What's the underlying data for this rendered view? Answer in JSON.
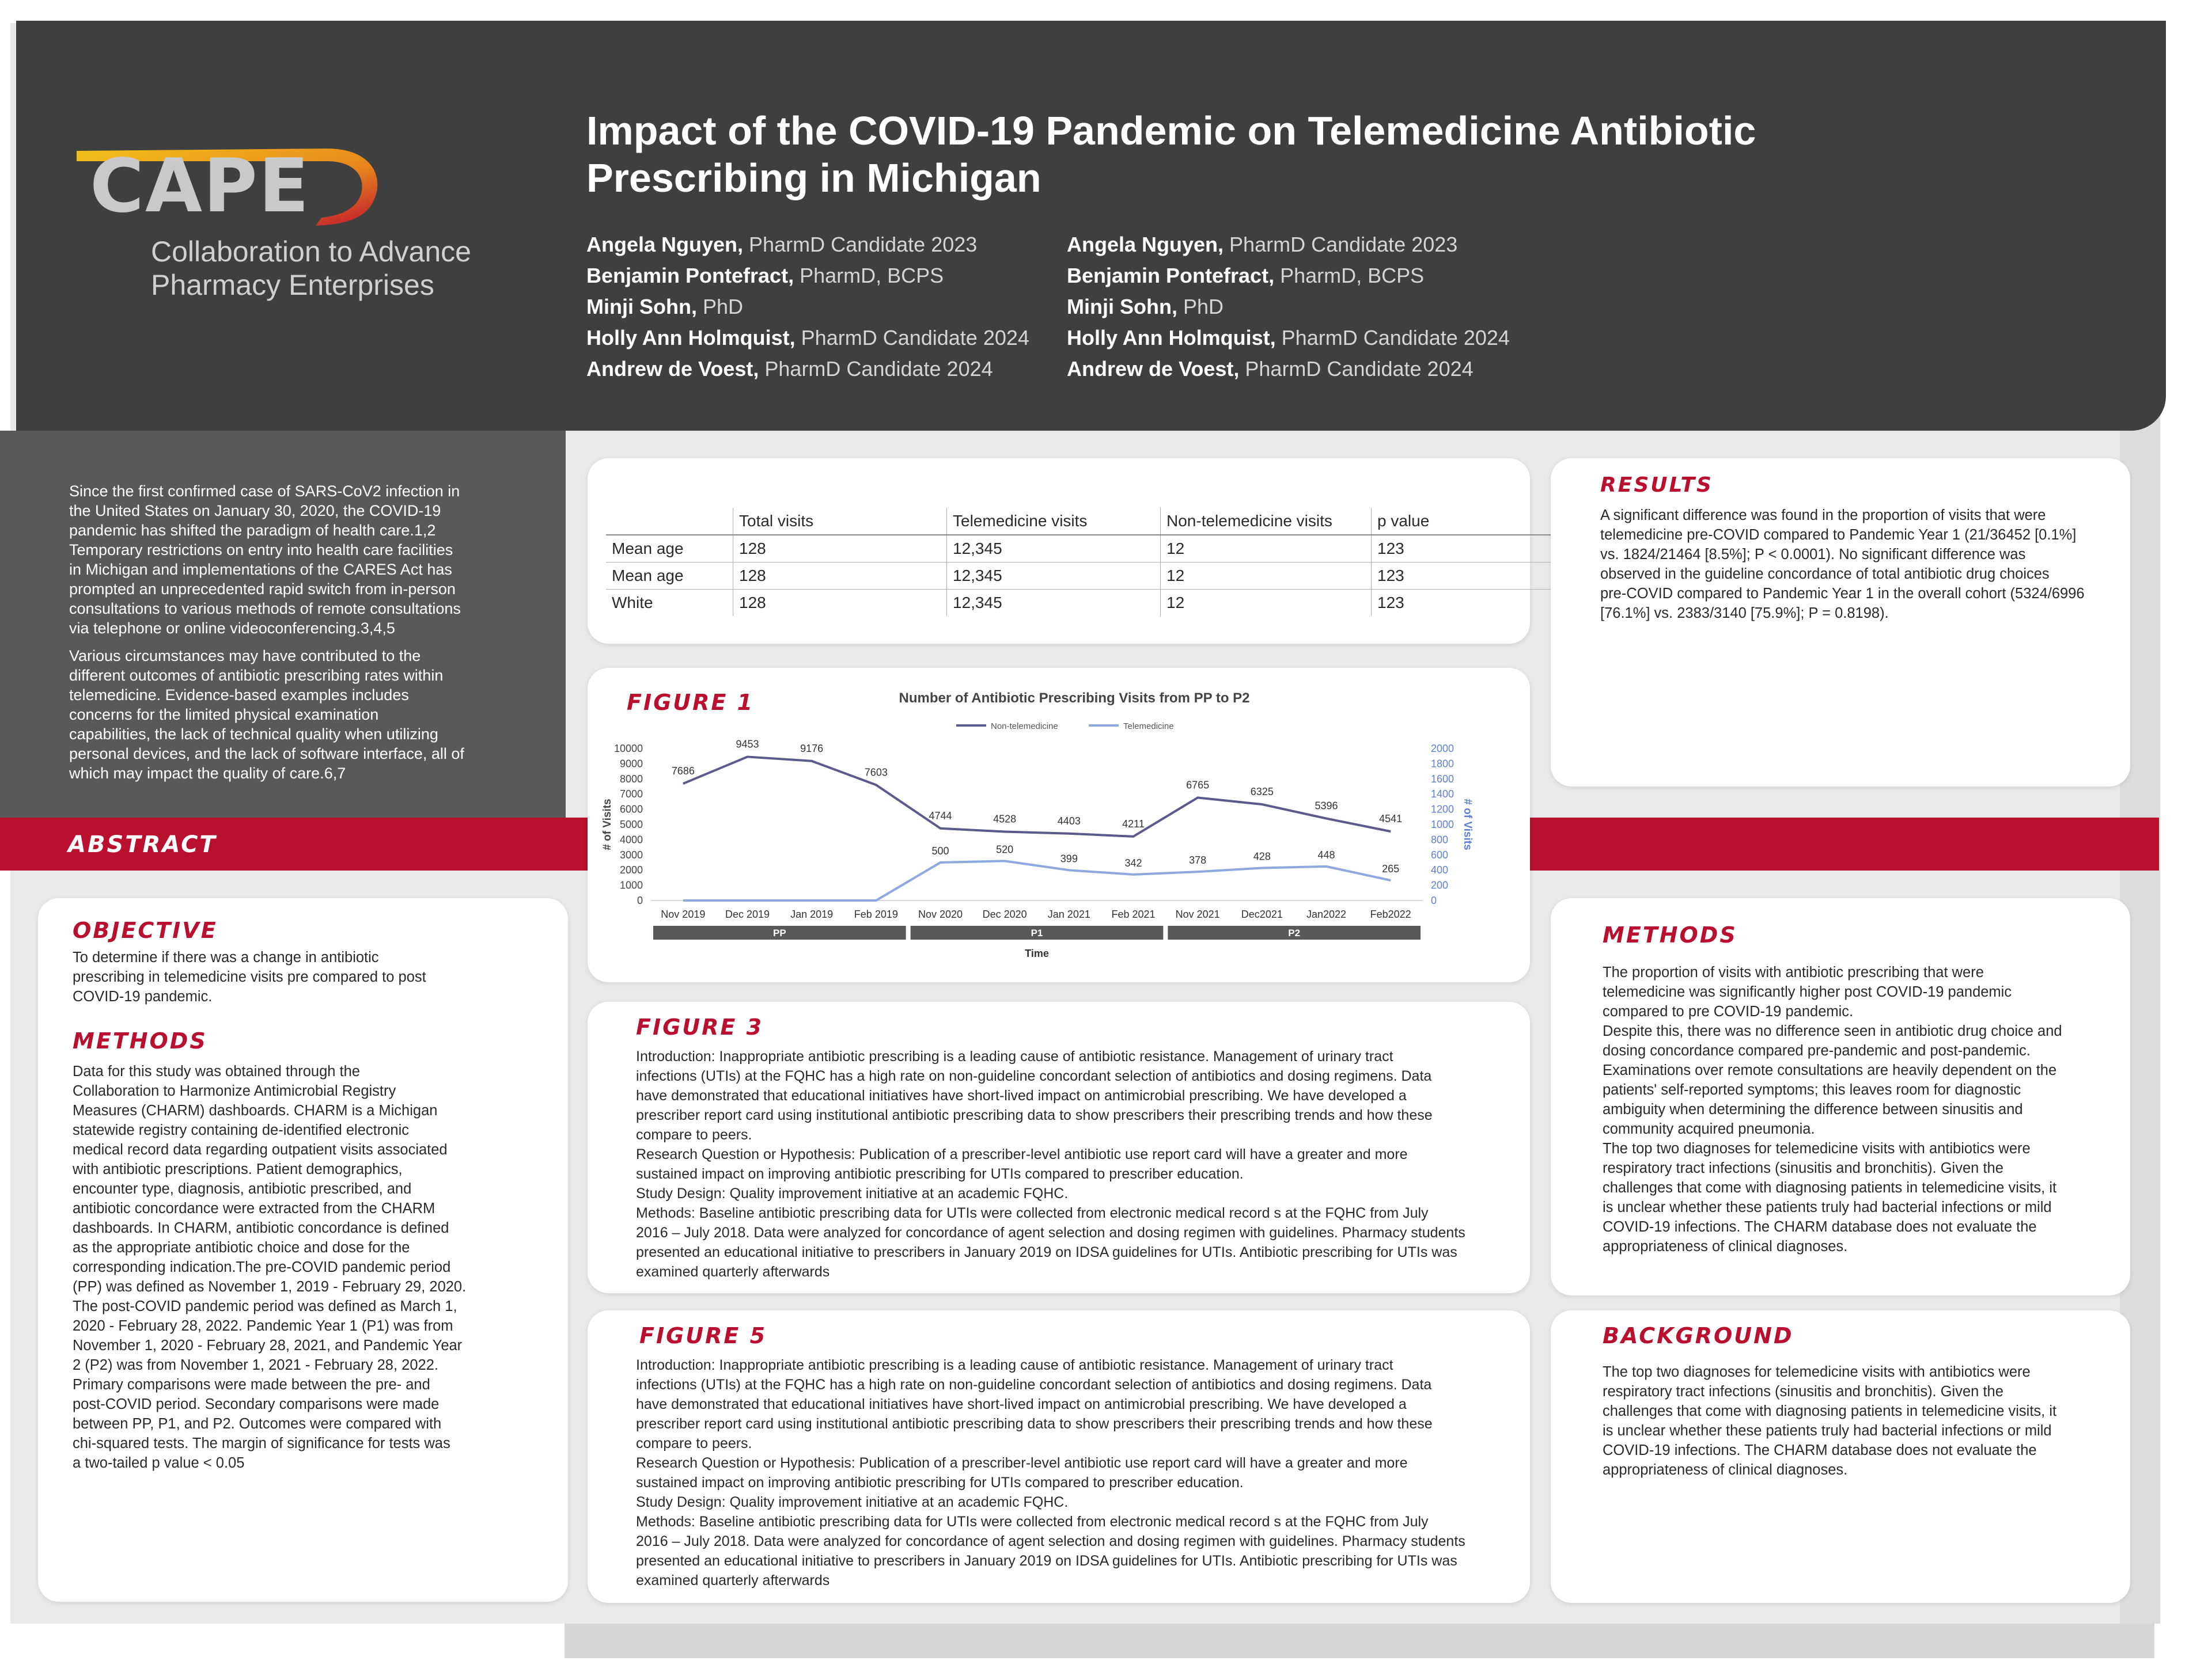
{
  "header": {
    "title_line1": "Impact of the COVID-19 Pandemic on Telemedicine Antibiotic",
    "title_line2": "Prescribing in Michigan",
    "logo": {
      "wordmark": "CAPE",
      "tagline_line1": "Collaboration to Advance",
      "tagline_line2": "Pharmacy Enterprises"
    },
    "authors_left": [
      {
        "name": "Angela Nguyen,",
        "cred": " PharmD Candidate 2023"
      },
      {
        "name": "Benjamin Pontefract,",
        "cred": " PharmD, BCPS"
      },
      {
        "name": "Minji Sohn,",
        "cred": " PhD"
      },
      {
        "name": "Holly Ann Holmquist,",
        "cred": " PharmD Candidate 2024"
      },
      {
        "name": "Andrew de Voest,",
        "cred": " PharmD Candidate 2024"
      }
    ],
    "authors_right": [
      {
        "name": "Angela Nguyen,",
        "cred": " PharmD Candidate 2023"
      },
      {
        "name": "Benjamin Pontefract,",
        "cred": " PharmD, BCPS"
      },
      {
        "name": "Minji Sohn,",
        "cred": " PhD"
      },
      {
        "name": "Holly Ann Holmquist,",
        "cred": " PharmD Candidate 2024"
      },
      {
        "name": "Andrew de Voest,",
        "cred": " PharmD Candidate 2024"
      }
    ]
  },
  "intro": {
    "p1": "Since the first confirmed case of SARS-CoV2 infection in\nthe United States on January 30, 2020, the COVID-19\npandemic has shifted the paradigm of health care.1,2\nTemporary restrictions on entry into health care facilities\nin Michigan and implementations of the CARES Act has\nprompted an unprecedented rapid switch from in-person\nconsultations to various methods of remote consultations\nvia telephone or online videoconferencing.3,4,5",
    "p2": "Various circumstances may have contributed to the\ndifferent outcomes of antibiotic prescribing rates within\ntelemedicine. Evidence-based examples includes\nconcerns for the limited physical examination\ncapabilities, the lack of technical quality when utilizing\npersonal devices, and the lack of software interface, all of\nwhich may impact the quality of care.6,7"
  },
  "abstract_label": "ABSTRACT",
  "left_card": {
    "objective_title": "OBJECTIVE",
    "objective_text": "To determine if there was a change in antibiotic\nprescribing in telemedicine visits pre compared to post\nCOVID-19 pandemic.",
    "methods_title": "METHODS",
    "methods_text": "Data for this study was obtained through the\nCollaboration to Harmonize Antimicrobial Registry\nMeasures (CHARM) dashboards. CHARM is a Michigan\nstatewide registry containing de-identified electronic\nmedical record data regarding outpatient visits associated\nwith antibiotic prescriptions. Patient demographics,\nencounter type, diagnosis, antibiotic prescribed, and\nantibiotic concordance were extracted from the CHARM\ndashboards. In CHARM, antibiotic concordance is defined\nas the appropriate antibiotic choice and dose for the\ncorresponding indication.The pre-COVID pandemic period\n(PP) was defined as November 1, 2019 - February 29, 2020.\nThe post-COVID pandemic period was defined as March 1,\n2020 - February 28, 2022. Pandemic Year 1 (P1) was from\nNovember 1, 2020 - February 28, 2021, and Pandemic Year\n2 (P2) was from November 1, 2021 - February 28, 2022.\nPrimary comparisons were made between the pre- and\npost-COVID period. Secondary comparisons were made\nbetween PP, P1, and P2. Outcomes were compared with\nchi-squared tests. The margin of significance for tests was\na two-tailed p value < 0.05"
  },
  "table": {
    "headers": [
      "",
      "Total visits",
      "Telemedicine visits",
      "Non-telemedicine visits",
      "p value"
    ],
    "rows": [
      [
        "Mean age",
        "128",
        "12,345",
        "12",
        "123"
      ],
      [
        "Mean age",
        "128",
        "12,345",
        "12",
        "123"
      ],
      [
        "White",
        "128",
        "12,345",
        "12",
        "123"
      ]
    ]
  },
  "figure1": {
    "label": "FIGURE 1",
    "chart_data": {
      "type": "line",
      "title": "Number of Antibiotic Prescribing Visits from PP to P2",
      "categories": [
        "Nov 2019",
        "Dec 2019",
        "Jan 2019",
        "Feb 2019",
        "Nov 2020",
        "Dec 2020",
        "Jan 2021",
        "Feb 2021",
        "Nov 2021",
        "Dec2021",
        "Jan2022",
        "Feb2022"
      ],
      "series": [
        {
          "name": "Non-telemedicine",
          "axis": "left",
          "color": "#5a5a8c",
          "values": [
            7686,
            9453,
            9176,
            7603,
            4744,
            4528,
            4403,
            4211,
            6765,
            6325,
            5396,
            4541
          ]
        },
        {
          "name": "Telemedicine",
          "axis": "right",
          "color": "#8fa8e0",
          "values": [
            0,
            0,
            0,
            0,
            500,
            520,
            399,
            342,
            378,
            428,
            448,
            265
          ]
        }
      ],
      "telemedicine_labels": [
        "",
        "",
        "",
        "",
        "500",
        "520",
        "399",
        "342",
        "378",
        "428",
        "448",
        "265"
      ],
      "ylabel_left": "# of Visits",
      "ylabel_right": "# of Visits",
      "xlabel": "Time",
      "ylim_left": [
        0,
        10000
      ],
      "ylim_right": [
        0,
        2000
      ],
      "yticks_left": [
        "0",
        "1000",
        "2000",
        "3000",
        "4000",
        "5000",
        "6000",
        "7000",
        "8000",
        "9000",
        "10000"
      ],
      "yticks_right": [
        "0",
        "200",
        "400",
        "600",
        "800",
        "1000",
        "1200",
        "1400",
        "1600",
        "1800",
        "2000"
      ],
      "groups": [
        {
          "label": "PP",
          "span": [
            0,
            3
          ]
        },
        {
          "label": "P1",
          "span": [
            4,
            7
          ]
        },
        {
          "label": "P2",
          "span": [
            8,
            11
          ]
        }
      ],
      "legend_position": "top",
      "grid": false
    }
  },
  "figure3": {
    "label": "FIGURE 3",
    "text": "Introduction: Inappropriate antibiotic prescribing is a leading cause of antibiotic resistance. Management of urinary tract\ninfections (UTIs) at the FQHC has a high rate on non-guideline concordant selection of antibiotics and dosing regimens. Data\nhave demonstrated that educational initiatives have short-lived impact on antimicrobial prescribing. We have developed a\nprescriber report card using institutional antibiotic prescribing data to show prescribers their prescribing trends and how these\ncompare to peers.\nResearch Question or Hypothesis: Publication of a prescriber-level antibiotic use report card will have a greater and more\nsustained impact on improving antibiotic prescribing for UTIs compared to prescriber education.\nStudy Design: Quality improvement initiative at an academic FQHC.\nMethods: Baseline antibiotic prescribing data for UTIs were collected from electronic medical record s at the FQHC from July\n2016 – July 2018. Data were analyzed for concordance of agent selection and dosing regimen with guidelines. Pharmacy students\npresented an educational initiative to prescribers in January 2019 on IDSA guidelines for UTIs. Antibiotic prescribing for UTIs was\nexamined quarterly afterwards"
  },
  "figure5": {
    "label": "FIGURE 5",
    "text": "Introduction: Inappropriate antibiotic prescribing is a leading cause of antibiotic resistance. Management of urinary tract\ninfections (UTIs) at the FQHC has a high rate on non-guideline concordant selection of antibiotics and dosing regimens. Data\nhave demonstrated that educational initiatives have short-lived impact on antimicrobial prescribing. We have developed a\nprescriber report card using institutional antibiotic prescribing data to show prescribers their prescribing trends and how these\ncompare to peers.\nResearch Question or Hypothesis: Publication of a prescriber-level antibiotic use report card will have a greater and more\nsustained impact on improving antibiotic prescribing for UTIs compared to prescriber education.\nStudy Design: Quality improvement initiative at an academic FQHC.\nMethods: Baseline antibiotic prescribing data for UTIs were collected from electronic medical record s at the FQHC from July\n2016 – July 2018. Data were analyzed for concordance of agent selection and dosing regimen with guidelines. Pharmacy students\npresented an educational initiative to prescribers in January 2019 on IDSA guidelines for UTIs. Antibiotic prescribing for UTIs was\nexamined quarterly afterwards"
  },
  "results": {
    "title": "RESULTS",
    "text": "A significant difference was found in the proportion of visits that were\ntelemedicine pre-COVID compared to Pandemic Year 1 (21/36452 [0.1%]\nvs. 1824/21464 [8.5%]; P < 0.0001). No significant  difference was\nobserved in the guideline concordance of total antibiotic drug choices\npre-COVID compared to Pandemic Year 1 in the overall cohort (5324/6996\n[76.1%] vs. 2383/3140 [75.9%]; P = 0.8198)."
  },
  "right_methods": {
    "title": "METHODS",
    "text": "The proportion of visits with antibiotic prescribing that were\ntelemedicine was significantly higher post COVID-19 pandemic\ncompared to pre COVID-19 pandemic.\nDespite this, there was no difference seen in antibiotic drug choice and\ndosing concordance compared pre-pandemic and post-pandemic.\nExaminations over remote consultations are heavily dependent on the\npatients' self-reported symptoms; this leaves room for diagnostic\nambiguity when determining the difference between sinusitis and\ncommunity acquired pneumonia.\nThe top two diagnoses for telemedicine visits with antibiotics were\nrespiratory tract infections (sinusitis and bronchitis). Given the\nchallenges that come with diagnosing patients in telemedicine visits, it\nis unclear whether these patients truly had bacterial infections or mild\nCOVID-19 infections. The CHARM database does not evaluate the\nappropriateness of clinical diagnoses."
  },
  "background": {
    "title": "BACKGROUND",
    "text": "The top two diagnoses for telemedicine visits with antibiotics were\nrespiratory tract infections (sinusitis and bronchitis). Given the\nchallenges that come with diagnosing patients in telemedicine visits, it\nis unclear whether these patients truly had bacterial infections or mild\nCOVID-19 infections. The CHARM database does not evaluate the\nappropriateness of clinical diagnoses."
  },
  "colors": {
    "header_bg": "#3f3f3f",
    "accent_red": "#b8102e",
    "intro_bg": "#595959",
    "page_bg": "#e9e9e9"
  }
}
